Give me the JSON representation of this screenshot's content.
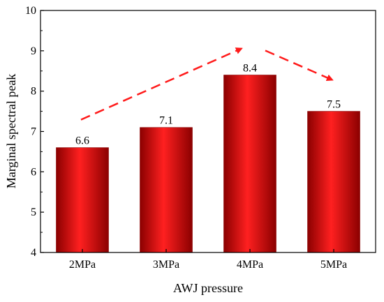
{
  "chart_data": {
    "type": "bar",
    "categories": [
      "2MPa",
      "3MPa",
      "4MPa",
      "5MPa"
    ],
    "values": [
      6.6,
      7.1,
      8.4,
      7.5
    ],
    "data_labels": [
      "6.6",
      "7.1",
      "8.4",
      "7.5"
    ],
    "xlabel": "AWJ pressure",
    "ylabel": "Marginal spectral peak",
    "ylim": [
      4,
      10
    ],
    "yticks": [
      "4",
      "5",
      "6",
      "7",
      "8",
      "9",
      "10"
    ],
    "grid": false,
    "legend": "none",
    "annotations": [
      {
        "type": "dashed-arrow",
        "from": "2MPa",
        "to": "4MPa",
        "direction": "increasing"
      },
      {
        "type": "dashed-arrow",
        "from": "4MPa",
        "to": "5MPa",
        "direction": "decreasing"
      }
    ],
    "colors": {
      "bar_edge": "#8b0000",
      "bar_center": "#ff2020",
      "arrow": "#ff1a1a",
      "axis": "#000000"
    }
  }
}
